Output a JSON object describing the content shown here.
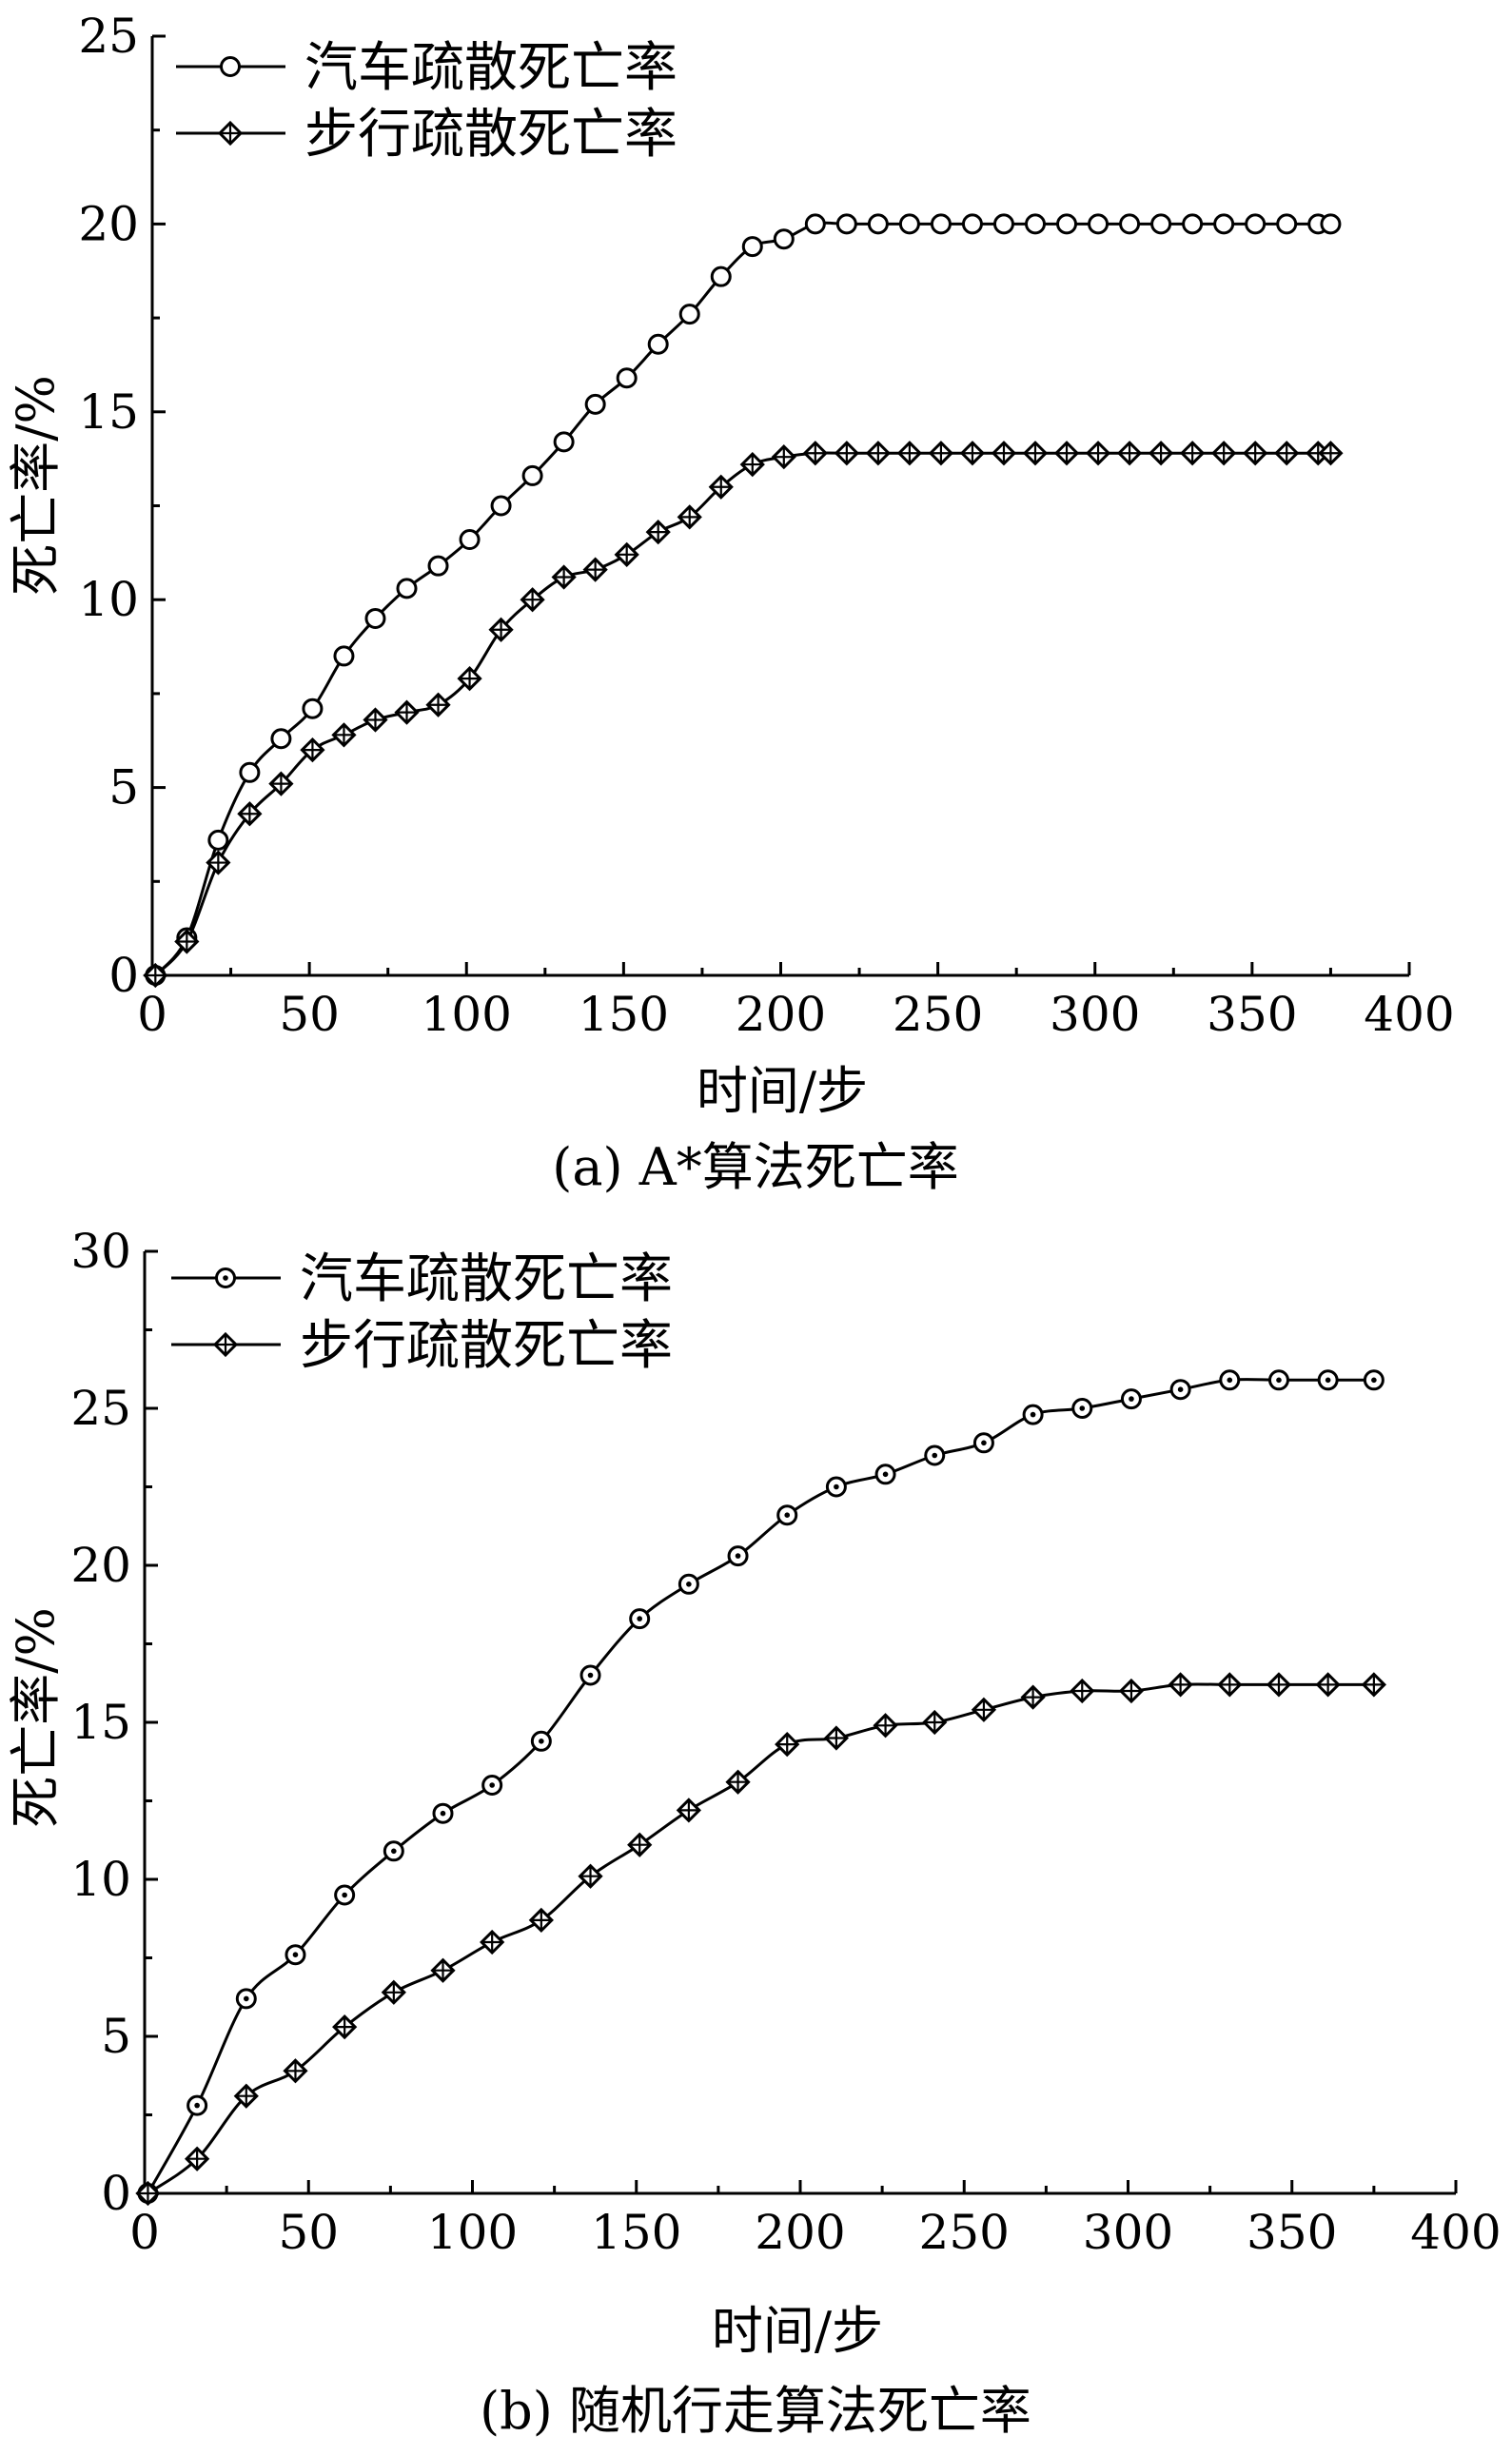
{
  "chart_data": [
    {
      "type": "line",
      "caption": "(a) A*算法死亡率",
      "xlabel": "时间/步",
      "ylabel": "死亡率/%",
      "xlim": [
        0,
        400
      ],
      "ylim": [
        0,
        25
      ],
      "xticks": [
        0,
        50,
        100,
        150,
        200,
        250,
        300,
        350,
        400
      ],
      "yticks": [
        0,
        5,
        10,
        15,
        20,
        25
      ],
      "legend_position": "top-left",
      "series": [
        {
          "name": "汽车疏散死亡率",
          "marker": "circle",
          "x": [
            1,
            11,
            21,
            31,
            41,
            51,
            61,
            71,
            81,
            91,
            101,
            111,
            121,
            131,
            141,
            151,
            161,
            171,
            181,
            191,
            201,
            211,
            221,
            231,
            241,
            251,
            261,
            271,
            281,
            291,
            301,
            311,
            321,
            331,
            341,
            351,
            361,
            371,
            375
          ],
          "y": [
            0,
            1.0,
            3.6,
            5.4,
            6.3,
            7.1,
            8.5,
            9.5,
            10.3,
            10.9,
            11.6,
            12.5,
            13.3,
            14.2,
            15.2,
            15.9,
            16.8,
            17.6,
            18.6,
            19.4,
            19.6,
            20,
            20,
            20,
            20,
            20,
            20,
            20,
            20,
            20,
            20,
            20,
            20,
            20,
            20,
            20,
            20,
            20,
            20
          ]
        },
        {
          "name": "步行疏散死亡率",
          "marker": "diamond",
          "x": [
            1,
            11,
            21,
            31,
            41,
            51,
            61,
            71,
            81,
            91,
            101,
            111,
            121,
            131,
            141,
            151,
            161,
            171,
            181,
            191,
            201,
            211,
            221,
            231,
            241,
            251,
            261,
            271,
            281,
            291,
            301,
            311,
            321,
            331,
            341,
            351,
            361,
            371,
            375
          ],
          "y": [
            0,
            0.9,
            3.0,
            4.3,
            5.1,
            6.0,
            6.4,
            6.8,
            7.0,
            7.2,
            7.9,
            9.2,
            10.0,
            10.6,
            10.8,
            11.2,
            11.8,
            12.2,
            13.0,
            13.6,
            13.8,
            13.9,
            13.9,
            13.9,
            13.9,
            13.9,
            13.9,
            13.9,
            13.9,
            13.9,
            13.9,
            13.9,
            13.9,
            13.9,
            13.9,
            13.9,
            13.9,
            13.9,
            13.9
          ]
        }
      ]
    },
    {
      "type": "line",
      "caption": "(b) 随机行走算法死亡率",
      "xlabel": "时间/步",
      "ylabel": "死亡率/%",
      "xlim": [
        0,
        400
      ],
      "ylim": [
        0,
        30
      ],
      "xticks": [
        0,
        50,
        100,
        150,
        200,
        250,
        300,
        350,
        400
      ],
      "yticks": [
        0,
        5,
        10,
        15,
        20,
        25,
        30
      ],
      "legend_position": "top-left",
      "series": [
        {
          "name": "汽车疏散死亡率",
          "marker": "circle-dot",
          "x": [
            1,
            16,
            31,
            46,
            61,
            76,
            91,
            106,
            121,
            136,
            151,
            166,
            181,
            196,
            211,
            226,
            241,
            256,
            271,
            286,
            301,
            316,
            331,
            346,
            361,
            375
          ],
          "y": [
            0,
            2.8,
            6.2,
            7.6,
            9.5,
            10.9,
            12.1,
            13.0,
            14.4,
            16.5,
            18.3,
            19.4,
            20.3,
            21.6,
            22.5,
            22.9,
            23.5,
            23.9,
            24.8,
            25.0,
            25.3,
            25.6,
            25.9,
            25.9,
            25.9,
            25.9
          ]
        },
        {
          "name": "步行疏散死亡率",
          "marker": "diamond",
          "x": [
            1,
            16,
            31,
            46,
            61,
            76,
            91,
            106,
            121,
            136,
            151,
            166,
            181,
            196,
            211,
            226,
            241,
            256,
            271,
            286,
            301,
            316,
            331,
            346,
            361,
            375
          ],
          "y": [
            0,
            1.1,
            3.1,
            3.9,
            5.3,
            6.4,
            7.1,
            8.0,
            8.7,
            10.1,
            11.1,
            12.2,
            13.1,
            14.3,
            14.5,
            14.9,
            15.0,
            15.4,
            15.8,
            16.0,
            16.0,
            16.2,
            16.2,
            16.2,
            16.2,
            16.2
          ]
        }
      ]
    }
  ]
}
